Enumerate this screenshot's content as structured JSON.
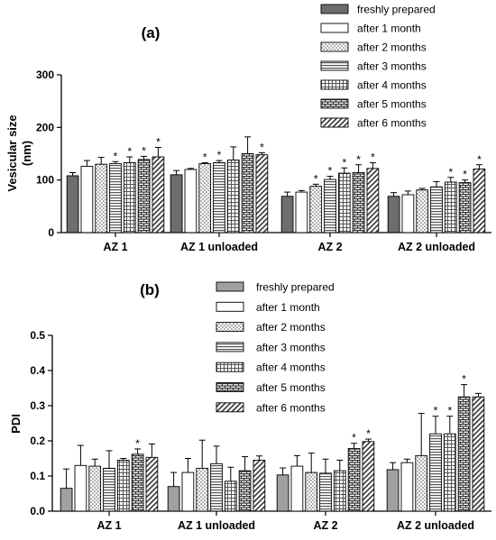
{
  "chart_data": [
    {
      "type": "bar",
      "panel": "(a)",
      "ylabel": [
        "Vesicular size",
        "(nm)"
      ],
      "ylim": [
        0,
        300
      ],
      "yticks": [
        0,
        100,
        200,
        300
      ],
      "categories": [
        "AZ 1",
        "AZ 1 unloaded",
        "AZ 2",
        "AZ 2 unloaded"
      ],
      "legend_position": "top-right",
      "series": [
        {
          "name": "freshly prepared",
          "pattern": "dark-gray",
          "values": [
            108,
            110,
            69,
            69
          ],
          "errors": [
            6,
            8,
            8,
            7
          ],
          "significant": [
            false,
            false,
            false,
            false
          ]
        },
        {
          "name": "after 1 month",
          "pattern": "white",
          "values": [
            126,
            120,
            77,
            72
          ],
          "errors": [
            11,
            2,
            3,
            7
          ],
          "significant": [
            false,
            false,
            false,
            false
          ]
        },
        {
          "name": "after 2 months",
          "pattern": "dots",
          "values": [
            130,
            131,
            88,
            81
          ],
          "errors": [
            13,
            2,
            4,
            3
          ],
          "significant": [
            false,
            true,
            true,
            false
          ]
        },
        {
          "name": "after 3 months",
          "pattern": "horizontal-lines",
          "values": [
            131,
            133,
            101,
            87
          ],
          "errors": [
            4,
            4,
            6,
            10
          ],
          "significant": [
            true,
            true,
            true,
            false
          ]
        },
        {
          "name": "after 4 months",
          "pattern": "grid-lines",
          "values": [
            133,
            138,
            113,
            96
          ],
          "errors": [
            11,
            25,
            10,
            9
          ],
          "significant": [
            true,
            false,
            true,
            true
          ]
        },
        {
          "name": "after 5 months",
          "pattern": "bricks",
          "values": [
            139,
            150,
            114,
            95
          ],
          "errors": [
            6,
            32,
            15,
            5
          ],
          "significant": [
            true,
            false,
            true,
            true
          ]
        },
        {
          "name": "after 6 months",
          "pattern": "diagonal-lines",
          "values": [
            144,
            148,
            122,
            121
          ],
          "errors": [
            18,
            4,
            11,
            8
          ],
          "significant": [
            true,
            true,
            true,
            true
          ]
        }
      ]
    },
    {
      "type": "bar",
      "panel": "(b)",
      "ylabel": [
        "PDI"
      ],
      "ylim": [
        0,
        0.5
      ],
      "yticks": [
        "0.0",
        "0.1",
        "0.2",
        "0.3",
        "0.4",
        "0.5"
      ],
      "categories": [
        "AZ 1",
        "AZ 1 unloaded",
        "AZ 2",
        "AZ 2 unloaded"
      ],
      "legend_position": "top-center",
      "series": [
        {
          "name": "freshly prepared",
          "pattern": "gray",
          "values": [
            0.065,
            0.07,
            0.103,
            0.118
          ],
          "errors": [
            0.055,
            0.04,
            0.02,
            0.02
          ],
          "significant": [
            false,
            false,
            false,
            false
          ]
        },
        {
          "name": "after 1 month",
          "pattern": "white",
          "values": [
            0.13,
            0.11,
            0.128,
            0.138
          ],
          "errors": [
            0.057,
            0.04,
            0.03,
            0.01
          ],
          "significant": [
            false,
            false,
            false,
            false
          ]
        },
        {
          "name": "after 2 months",
          "pattern": "dots",
          "values": [
            0.128,
            0.122,
            0.11,
            0.158
          ],
          "errors": [
            0.02,
            0.08,
            0.055,
            0.12
          ],
          "significant": [
            false,
            false,
            false,
            false
          ]
        },
        {
          "name": "after 3 months",
          "pattern": "horizontal-lines",
          "values": [
            0.122,
            0.135,
            0.108,
            0.22
          ],
          "errors": [
            0.05,
            0.05,
            0.04,
            0.05
          ],
          "significant": [
            false,
            false,
            false,
            true
          ]
        },
        {
          "name": "after 4 months",
          "pattern": "grid-lines",
          "values": [
            0.145,
            0.085,
            0.115,
            0.22
          ],
          "errors": [
            0.005,
            0.04,
            0.03,
            0.05
          ],
          "significant": [
            false,
            false,
            false,
            true
          ]
        },
        {
          "name": "after 5 months",
          "pattern": "bricks",
          "values": [
            0.162,
            0.115,
            0.178,
            0.325
          ],
          "errors": [
            0.015,
            0.04,
            0.015,
            0.035
          ],
          "significant": [
            true,
            false,
            true,
            true
          ]
        },
        {
          "name": "after 6 months",
          "pattern": "diagonal-lines",
          "values": [
            0.153,
            0.145,
            0.198,
            0.325
          ],
          "errors": [
            0.038,
            0.012,
            0.007,
            0.01
          ],
          "significant": [
            false,
            false,
            true,
            false
          ]
        }
      ]
    }
  ],
  "significance_marker": "*"
}
